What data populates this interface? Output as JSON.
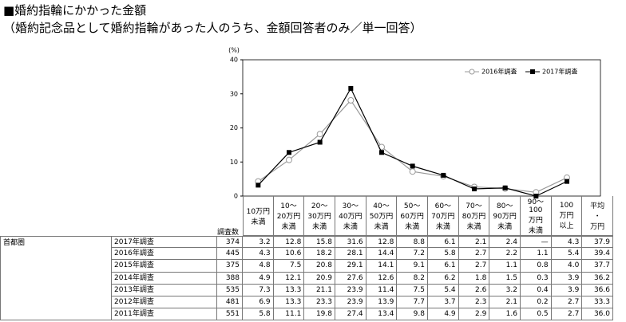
{
  "title": "■婚約指輪にかかった金額",
  "subtitle": "（婚約記念品として婚約指輪があった人のうち、金額回答者のみ／単一回答）",
  "chart_data": {
    "type": "line",
    "y_label": "(%)",
    "categories": [
      "10万円\n未満",
      "10～\n20万円\n未満",
      "20～\n30万円\n未満",
      "30～\n40万円\n未満",
      "40～\n50万円\n未満",
      "50～\n60万円\n未満",
      "60～\n70万円\n未満",
      "70～\n80万円\n未満",
      "80～\n90万円\n未満",
      "90～\n100\n万円\n未満",
      "100\n万円\n以上"
    ],
    "series": [
      {
        "name": "2016年調査",
        "color": "#999999",
        "marker": "circle",
        "values": [
          4.3,
          10.6,
          18.2,
          28.1,
          14.4,
          7.2,
          5.8,
          2.7,
          2.2,
          1.1,
          5.4
        ]
      },
      {
        "name": "2017年調査",
        "color": "#000000",
        "marker": "square",
        "values": [
          3.2,
          12.8,
          15.8,
          31.6,
          12.8,
          8.8,
          6.1,
          2.1,
          2.4,
          0,
          4.3
        ]
      }
    ],
    "ylim": [
      0,
      40
    ],
    "yticks": [
      0,
      10,
      20,
      30,
      40
    ],
    "grid": false,
    "legend": "top-right"
  },
  "table": {
    "region": "首都圏",
    "count_header": "調査数",
    "avg_header": "平均\n・\n万円",
    "rows": [
      {
        "label": "2017年調査",
        "n": "374",
        "cells": [
          "3.2",
          "12.8",
          "15.8",
          "31.6",
          "12.8",
          "8.8",
          "6.1",
          "2.1",
          "2.4",
          "—",
          "4.3",
          "37.9"
        ]
      },
      {
        "label": "2016年調査",
        "n": "445",
        "cells": [
          "4.3",
          "10.6",
          "18.2",
          "28.1",
          "14.4",
          "7.2",
          "5.8",
          "2.7",
          "2.2",
          "1.1",
          "5.4",
          "39.4"
        ]
      },
      {
        "label": "2015年調査",
        "n": "375",
        "cells": [
          "4.8",
          "7.5",
          "20.8",
          "29.1",
          "14.1",
          "9.1",
          "6.1",
          "2.7",
          "1.1",
          "0.8",
          "4.0",
          "37.7"
        ]
      },
      {
        "label": "2014年調査",
        "n": "388",
        "cells": [
          "4.9",
          "12.1",
          "20.9",
          "27.6",
          "12.6",
          "8.2",
          "6.2",
          "1.8",
          "1.5",
          "0.3",
          "3.9",
          "36.2"
        ]
      },
      {
        "label": "2013年調査",
        "n": "535",
        "cells": [
          "7.3",
          "13.3",
          "21.1",
          "23.9",
          "11.4",
          "7.5",
          "5.4",
          "2.6",
          "3.2",
          "0.4",
          "3.9",
          "36.6"
        ]
      },
      {
        "label": "2012年調査",
        "n": "481",
        "cells": [
          "6.9",
          "13.3",
          "23.3",
          "23.9",
          "13.9",
          "7.7",
          "3.7",
          "2.3",
          "2.1",
          "0.2",
          "2.7",
          "33.3"
        ]
      },
      {
        "label": "2011年調査",
        "n": "551",
        "cells": [
          "5.8",
          "11.1",
          "19.8",
          "27.4",
          "13.4",
          "9.8",
          "4.9",
          "2.9",
          "1.6",
          "0.5",
          "2.7",
          "36.0"
        ]
      }
    ]
  }
}
